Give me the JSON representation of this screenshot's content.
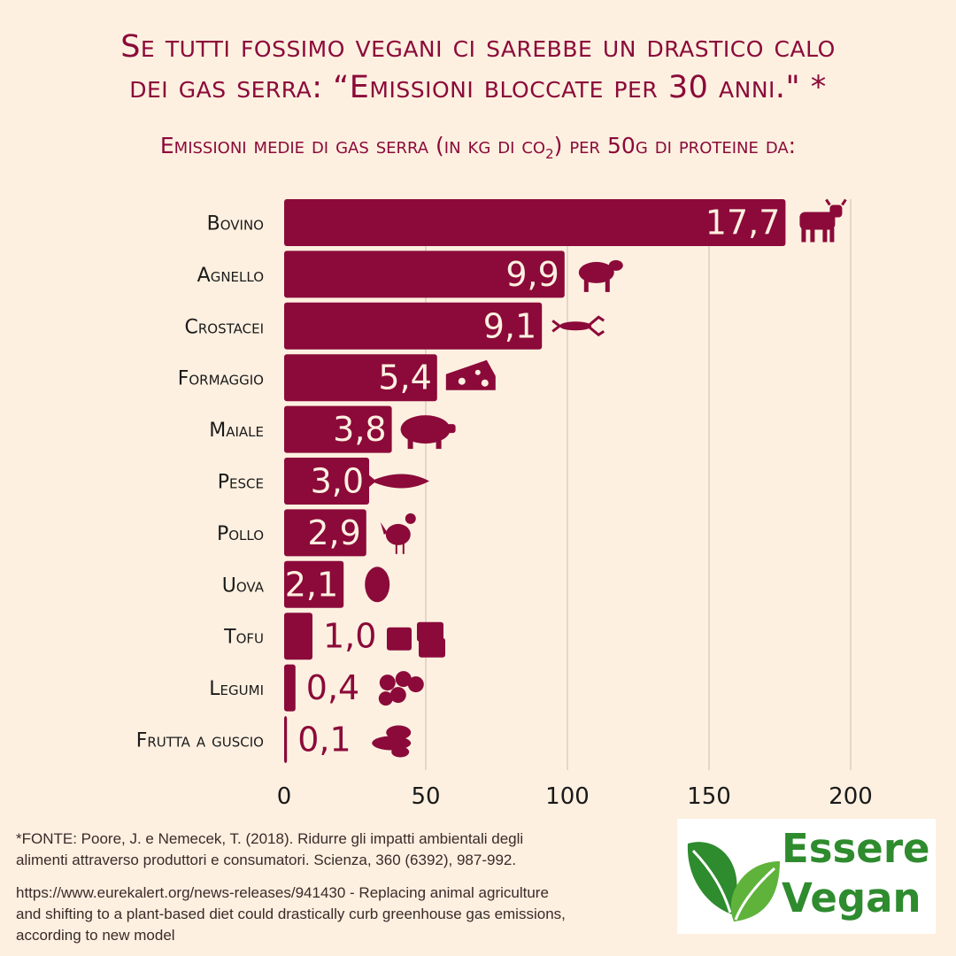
{
  "header": {
    "title_line1": "Se tutti fossimo vegani ci sarebbe un drastico calo",
    "title_line2": "dei gas serra: “Emissioni bloccate per 30 anni.\" *",
    "subtitle_pre": "Emissioni medie di gas serra (in kg di co",
    "subtitle_sub": "2",
    "subtitle_post": ") per 50g di proteine da:"
  },
  "chart_data": {
    "type": "bar",
    "orientation": "horizontal",
    "categories": [
      "Bovino",
      "Agnello",
      "Crostacei",
      "Formaggio",
      "Maiale",
      "Pesce",
      "Pollo",
      "Uova",
      "Tofu",
      "Legumi",
      "Frutta a guscio"
    ],
    "values": [
      177,
      99,
      91,
      54,
      38,
      30,
      29,
      21,
      10,
      4,
      1
    ],
    "value_labels": [
      "17,7",
      "9,9",
      "9,1",
      "5,4",
      "3,8",
      "3,0",
      "2,9",
      "2,1",
      "1,0",
      "0,4",
      "0,1"
    ],
    "icons": [
      "cow-icon",
      "sheep-icon",
      "lobster-icon",
      "cheese-icon",
      "pig-icon",
      "fish-icon",
      "chicken-icon",
      "egg-icon",
      "tofu-icon",
      "beans-icon",
      "nuts-icon"
    ],
    "xlim": [
      0,
      200
    ],
    "xticks": [
      "0",
      "50",
      "100",
      "150",
      "200"
    ],
    "xtick_values": [
      0,
      50,
      100,
      150,
      200
    ],
    "grid": true,
    "bar_color": "#8b0a3a",
    "label_color": "#fdf0e0"
  },
  "footer": {
    "source_line1": "*FONTE: Poore, J. e Nemecek, T. (2018). Ridurre gli impatti ambientali degli",
    "source_line2": "alimenti attraverso produttori e consumatori. Scienza, 360 (6392), 987-992.",
    "link_line1": "https://www.eurekalert.org/news-releases/941430 -  Replacing animal agriculture",
    "link_line2": "and shifting to a plant-based diet could drastically curb greenhouse gas emissions,",
    "link_line3": "according to new model"
  },
  "logo": {
    "line1": "Essere",
    "line2": "Vegan",
    "color": "#2e8b2e"
  }
}
